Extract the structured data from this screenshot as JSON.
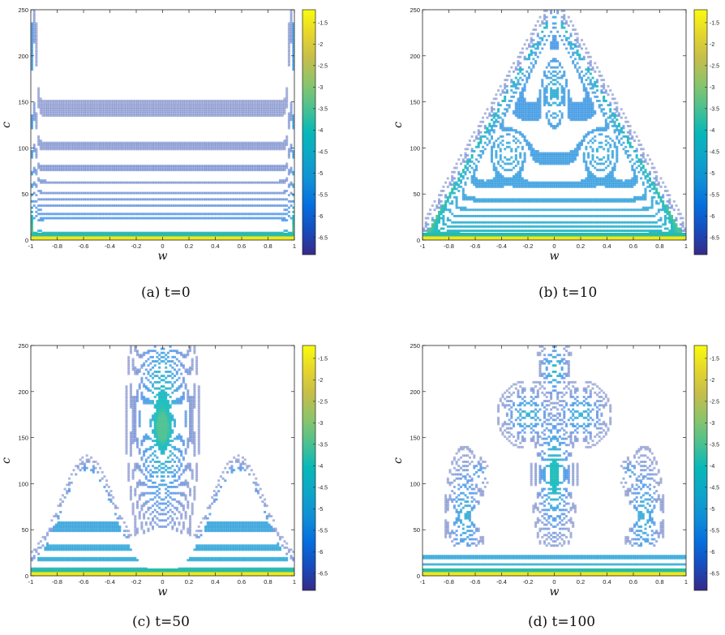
{
  "chart_data": [
    {
      "type": "contour",
      "caption": "(a) t=0",
      "xlabel": "w",
      "ylabel": "c",
      "xlim": [
        -1,
        1
      ],
      "ylim": [
        0,
        250
      ],
      "xticks": [
        "-1",
        "-0.8",
        "-0.6",
        "-0.4",
        "-0.2",
        "0",
        "0.2",
        "0.4",
        "0.6",
        "0.8",
        "1"
      ],
      "yticks": [
        "0",
        "50",
        "100",
        "150",
        "200",
        "250"
      ],
      "colorbar": {
        "range": [
          -6.9,
          -1.2
        ],
        "ticks": [
          "-1.5",
          "-2",
          "-2.5",
          "-3",
          "-3.5",
          "-4",
          "-4.5",
          "-5",
          "-5.5",
          "-6",
          "-6.5"
        ],
        "colormap": "parula"
      },
      "shape": "horizontal-bands"
    },
    {
      "type": "contour",
      "caption": "(b) t=10",
      "xlabel": "w",
      "ylabel": "c",
      "xlim": [
        -1,
        1
      ],
      "ylim": [
        0,
        250
      ],
      "xticks": [
        "-1",
        "-0.8",
        "-0.6",
        "-0.4",
        "-0.2",
        "0",
        "0.2",
        "0.4",
        "0.6",
        "0.8",
        "1"
      ],
      "yticks": [
        "0",
        "50",
        "100",
        "150",
        "200",
        "250"
      ],
      "colorbar": {
        "range": [
          -6.9,
          -1.2
        ],
        "ticks": [
          "-1.5",
          "-2",
          "-2.5",
          "-3",
          "-3.5",
          "-4",
          "-4.5",
          "-5",
          "-5.5",
          "-6",
          "-6.5"
        ],
        "colormap": "parula"
      },
      "shape": "triangle"
    },
    {
      "type": "contour",
      "caption": "(c) t=50",
      "xlabel": "w",
      "ylabel": "c",
      "xlim": [
        -1,
        1
      ],
      "ylim": [
        0,
        250
      ],
      "xticks": [
        "-1",
        "-0.8",
        "-0.6",
        "-0.4",
        "-0.2",
        "0",
        "0.2",
        "0.4",
        "0.6",
        "0.8",
        "1"
      ],
      "yticks": [
        "0",
        "50",
        "100",
        "150",
        "200",
        "250"
      ],
      "colorbar": {
        "range": [
          -6.9,
          -1.2
        ],
        "ticks": [
          "-1.5",
          "-2",
          "-2.5",
          "-3",
          "-3.5",
          "-4",
          "-4.5",
          "-5",
          "-5.5",
          "-6",
          "-6.5"
        ],
        "colormap": "parula"
      },
      "shape": "three-peaks"
    },
    {
      "type": "contour",
      "caption": "(d) t=100",
      "xlabel": "w",
      "ylabel": "c",
      "xlim": [
        -1,
        1
      ],
      "ylim": [
        0,
        250
      ],
      "xticks": [
        "-1",
        "-0.8",
        "-0.6",
        "-0.4",
        "-0.2",
        "0",
        "0.2",
        "0.4",
        "0.6",
        "0.8",
        "1"
      ],
      "yticks": [
        "0",
        "50",
        "100",
        "150",
        "200",
        "250"
      ],
      "colorbar": {
        "range": [
          -6.9,
          -1.2
        ],
        "ticks": [
          "-1.5",
          "-2",
          "-2.5",
          "-3",
          "-3.5",
          "-4",
          "-4.5",
          "-5",
          "-5.5",
          "-6",
          "-6.5"
        ],
        "colormap": "parula"
      },
      "shape": "anchor"
    }
  ]
}
